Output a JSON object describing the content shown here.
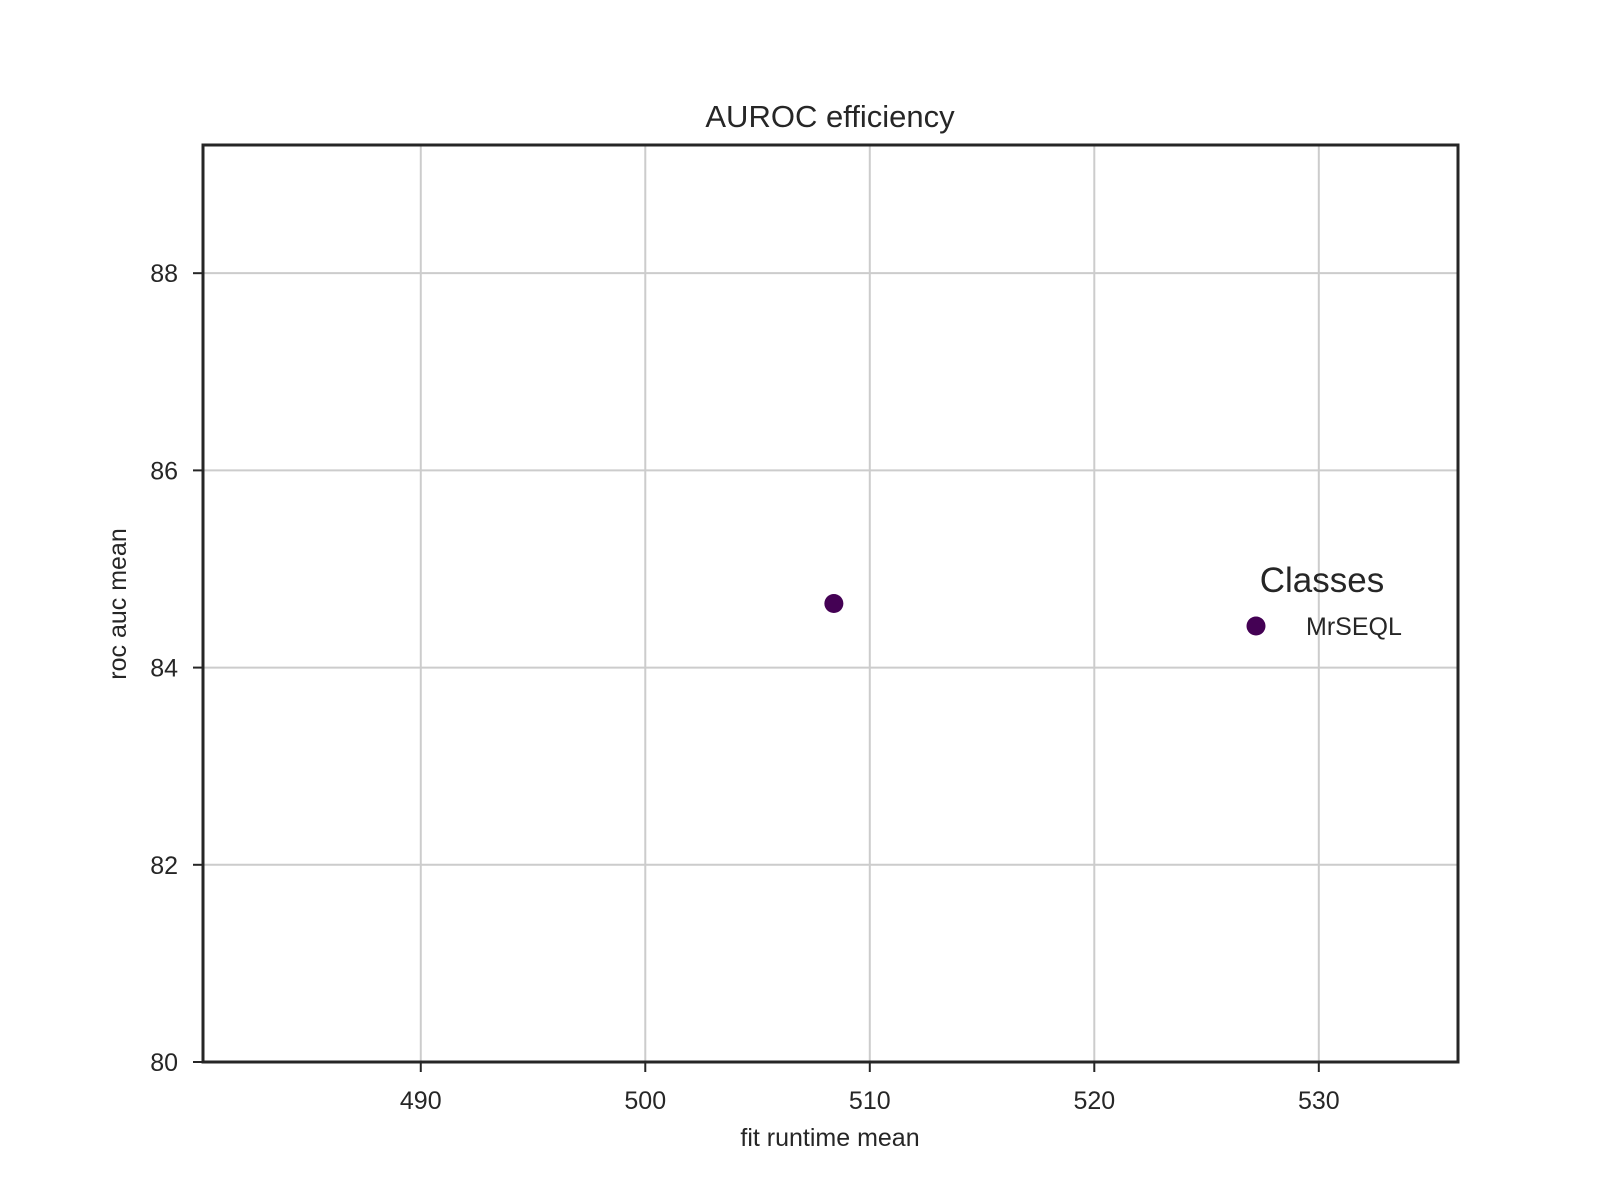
{
  "chart_data": {
    "type": "scatter",
    "title": "AUROC efficiency",
    "xlabel": "fit runtime mean",
    "ylabel": "roc auc mean",
    "xlim": [
      480.3,
      536.2
    ],
    "ylim": [
      80,
      89.3
    ],
    "xticks": [
      490,
      500,
      510,
      520,
      530
    ],
    "yticks": [
      80,
      82,
      84,
      86,
      88
    ],
    "grid": true,
    "legend": {
      "title": "Classes",
      "placement": "center-right",
      "entries": [
        "MrSEQL"
      ]
    },
    "series": [
      {
        "name": "MrSEQL",
        "color": "#440154",
        "points": [
          {
            "x": 508.4,
            "y": 84.65
          }
        ]
      }
    ]
  }
}
